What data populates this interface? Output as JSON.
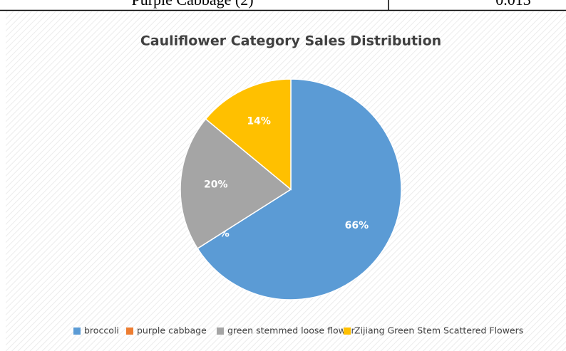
{
  "table_row": [
    "Purple Cabbage (2)",
    "0.013"
  ],
  "chart_data": {
    "type": "pie",
    "title": "Cauliflower Category Sales Distribution",
    "categories": [
      "broccoli",
      "purple cabbage",
      "green stemmed loose flower",
      "Zijiang Green Stem Scattered Flowers"
    ],
    "values": [
      66,
      0,
      20,
      14
    ],
    "value_labels": [
      "66%",
      "0%",
      "20%",
      "14%"
    ],
    "colors": [
      "#5B9BD5",
      "#ED7D31",
      "#A5A5A5",
      "#FFC000"
    ],
    "legend": "bottom"
  }
}
